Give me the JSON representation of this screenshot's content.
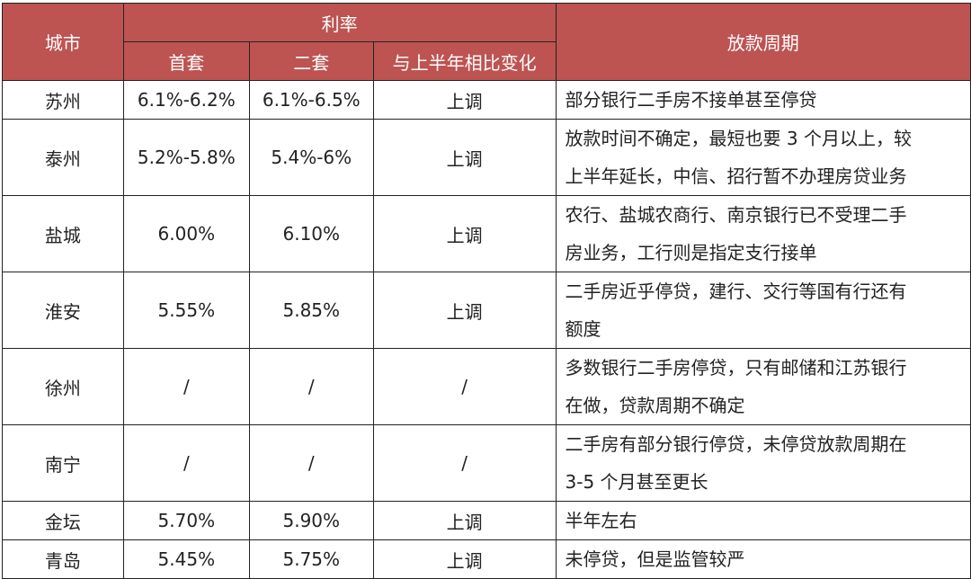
{
  "header": {
    "city": "城市",
    "rate": "利率",
    "first": "首套",
    "second": "二套",
    "change": "与上半年相比变化",
    "period": "放款周期"
  },
  "rows": [
    {
      "city": "苏州",
      "first": "6.1%-6.2%",
      "second": "6.1%-6.5%",
      "change": "上调",
      "period": [
        "部分银行二手房不接单甚至停贷"
      ]
    },
    {
      "city": "泰州",
      "first": "5.2%-5.8%",
      "second": "5.4%-6%",
      "change": "上调",
      "period": [
        "放款时间不确定，最短也要 3 个月以上，较",
        "上半年延长，中信、招行暂不办理房贷业务"
      ]
    },
    {
      "city": "盐城",
      "first": "6.00%",
      "second": "6.10%",
      "change": "上调",
      "period": [
        "农行、盐城农商行、南京银行已不受理二手",
        "房业务，工行则是指定支行接单"
      ]
    },
    {
      "city": "淮安",
      "first": "5.55%",
      "second": "5.85%",
      "change": "上调",
      "period": [
        "二手房近乎停贷，建行、交行等国有行还有",
        "额度"
      ]
    },
    {
      "city": "徐州",
      "first": "/",
      "second": "/",
      "change": "/",
      "period": [
        "多数银行二手房停贷，只有邮储和江苏银行",
        "在做，贷款周期不确定"
      ]
    },
    {
      "city": "南宁",
      "first": "/",
      "second": "/",
      "change": "/",
      "period": [
        "二手房有部分银行停贷，未停贷放款周期在",
        "3-5 个月甚至更长"
      ]
    },
    {
      "city": "金坛",
      "first": "5.70%",
      "second": "5.90%",
      "change": "上调",
      "period": [
        "半年左右"
      ]
    },
    {
      "city": "青岛",
      "first": "5.45%",
      "second": "5.75%",
      "change": "上调",
      "period": [
        "未停贷，但是监管较严"
      ]
    }
  ],
  "colors": {
    "header_bg": "#bd5452",
    "header_text": "#ffffff"
  }
}
